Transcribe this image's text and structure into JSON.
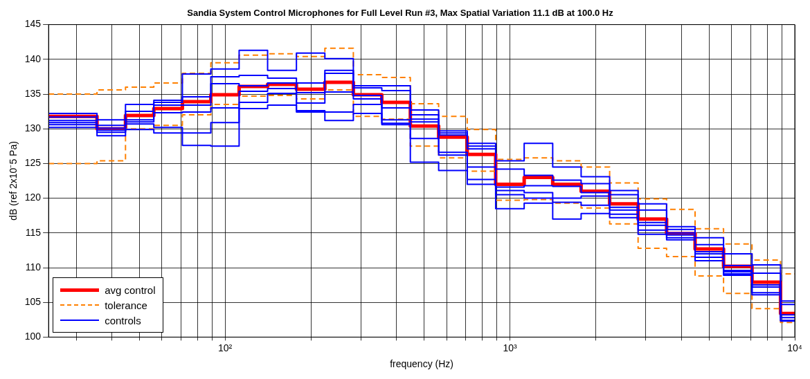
{
  "chart_data": {
    "type": "step",
    "title": "Sandia System Control Microphones for Full Level Run #3, Max Spatial Variation 11.1 dB at 100.0 Hz",
    "xlabel": "frequency (Hz)",
    "ylabel": "dB (ref 2x10⁻5 Pa)",
    "log": "x",
    "grid": true,
    "legend": "bottom left",
    "marker": "none",
    "x": [
      24,
      35.5,
      44.7,
      56.2,
      70.8,
      89.1,
      112,
      141,
      178,
      224,
      282,
      355,
      447,
      562,
      708,
      891,
      1122,
      1413,
      1778,
      2239,
      2818,
      3548,
      4467,
      5623,
      7079,
      8913,
      10000
    ],
    "xlim": [
      24,
      10000
    ],
    "xticks": [
      {
        "value": 30,
        "label": null
      },
      {
        "value": 40,
        "label": null
      },
      {
        "value": 50,
        "label": null
      },
      {
        "value": 60,
        "label": null
      },
      {
        "value": 70,
        "label": null
      },
      {
        "value": 80,
        "label": null
      },
      {
        "value": 90,
        "label": null
      },
      {
        "value": 100,
        "label": "10²"
      },
      {
        "value": 200,
        "label": null
      },
      {
        "value": 300,
        "label": null
      },
      {
        "value": 400,
        "label": null
      },
      {
        "value": 500,
        "label": null
      },
      {
        "value": 600,
        "label": null
      },
      {
        "value": 700,
        "label": null
      },
      {
        "value": 800,
        "label": null
      },
      {
        "value": 900,
        "label": null
      },
      {
        "value": 1000,
        "label": "10³"
      },
      {
        "value": 2000,
        "label": null
      },
      {
        "value": 3000,
        "label": null
      },
      {
        "value": 4000,
        "label": null
      },
      {
        "value": 5000,
        "label": null
      },
      {
        "value": 6000,
        "label": null
      },
      {
        "value": 7000,
        "label": null
      },
      {
        "value": 8000,
        "label": null
      },
      {
        "value": 9000,
        "label": null
      },
      {
        "value": 10000,
        "label": "10⁴"
      }
    ],
    "ylim": [
      100,
      145
    ],
    "yticks": [
      100,
      105,
      110,
      115,
      120,
      125,
      130,
      135,
      140,
      145
    ],
    "series": [
      {
        "name": "controls",
        "color": "#0000ff",
        "line_style": "solid",
        "values": [
          132.2,
          131.3,
          133.5,
          134.1,
          137.9,
          138.6,
          141.3,
          138.4,
          140.9,
          140.1,
          136.2,
          136.2,
          132.7,
          129.7,
          127.9,
          125.4,
          127.9,
          124.5,
          123.1,
          121.1,
          119.2,
          115.9,
          114.3,
          112.0,
          110.4,
          105.2,
          105.2
        ]
      },
      {
        "color": "#0000ff",
        "line_style": "solid",
        "values": [
          131.7,
          130.5,
          132.5,
          133.8,
          134.6,
          137.5,
          137.7,
          137.3,
          136.6,
          138.4,
          135.9,
          135.5,
          132.0,
          129.4,
          127.5,
          124.2,
          123.3,
          122.6,
          122.1,
          120.5,
          118.3,
          115.5,
          113.3,
          110.3,
          109.2,
          104.7,
          104.7
        ]
      },
      {
        "color": "#0000ff",
        "line_style": "solid",
        "values": [
          131.2,
          130.1,
          131.3,
          133.4,
          133.4,
          136.5,
          136.2,
          136.6,
          135.2,
          138.0,
          134.8,
          133.0,
          131.4,
          129.1,
          127.1,
          121.6,
          121.8,
          121.7,
          120.8,
          118.7,
          116.5,
          115.0,
          112.3,
          109.6,
          107.5,
          103.2,
          103.2
        ]
      },
      {
        "color": "#0000ff",
        "line_style": "solid",
        "values": [
          130.9,
          129.8,
          131.0,
          132.3,
          132.4,
          133.0,
          135.4,
          135.8,
          133.7,
          135.3,
          134.3,
          131.3,
          131.0,
          126.6,
          124.5,
          121.1,
          120.8,
          120.0,
          120.3,
          118.3,
          116.1,
          114.7,
          112.0,
          109.4,
          107.2,
          102.8,
          102.8
        ]
      },
      {
        "color": "#0000ff",
        "line_style": "solid",
        "values": [
          130.6,
          129.5,
          130.7,
          130.2,
          129.4,
          130.9,
          133.8,
          135.1,
          132.6,
          132.4,
          133.5,
          130.8,
          128.6,
          126.2,
          122.7,
          120.5,
          120.0,
          119.4,
          119.0,
          117.7,
          115.4,
          114.3,
          111.5,
          109.1,
          106.4,
          102.4,
          102.4
        ]
      },
      {
        "color": "#0000ff",
        "line_style": "solid",
        "values": [
          130.2,
          129.0,
          129.9,
          129.4,
          127.6,
          127.5,
          132.9,
          133.4,
          132.4,
          131.2,
          132.2,
          130.6,
          125.2,
          124.0,
          122.0,
          118.5,
          119.3,
          117.0,
          117.8,
          117.2,
          114.8,
          114.0,
          111.0,
          108.9,
          106.1,
          102.3,
          102.3
        ]
      },
      {
        "name": "tolerance",
        "color": "#ff8000",
        "line_style": "dashed",
        "values": [
          135.0,
          135.6,
          136.0,
          136.6,
          138.0,
          139.5,
          140.6,
          140.8,
          140.4,
          141.6,
          137.8,
          137.4,
          133.6,
          131.8,
          129.9,
          125.6,
          125.8,
          125.4,
          124.5,
          122.2,
          119.9,
          118.4,
          115.6,
          113.4,
          111.1,
          109.1,
          109.1
        ]
      },
      {
        "color": "#ff8000",
        "line_style": "dashed",
        "values": [
          125.0,
          125.4,
          130.0,
          130.5,
          132.0,
          133.5,
          134.7,
          134.8,
          134.3,
          135.6,
          131.8,
          131.4,
          127.5,
          125.8,
          123.9,
          119.7,
          119.8,
          119.3,
          118.6,
          116.3,
          112.8,
          111.6,
          108.8,
          106.3,
          104.1,
          102.1,
          102.1
        ]
      },
      {
        "name": "avg control",
        "color": "#ff0000",
        "line_style": "solid",
        "values": [
          131.8,
          130.0,
          131.9,
          132.9,
          133.9,
          134.9,
          136.1,
          136.4,
          135.7,
          136.7,
          134.9,
          133.8,
          130.4,
          128.8,
          126.3,
          122.0,
          123.0,
          122.0,
          121.0,
          119.2,
          117.0,
          114.9,
          112.7,
          110.2,
          107.9,
          103.4,
          103.4
        ]
      }
    ]
  }
}
